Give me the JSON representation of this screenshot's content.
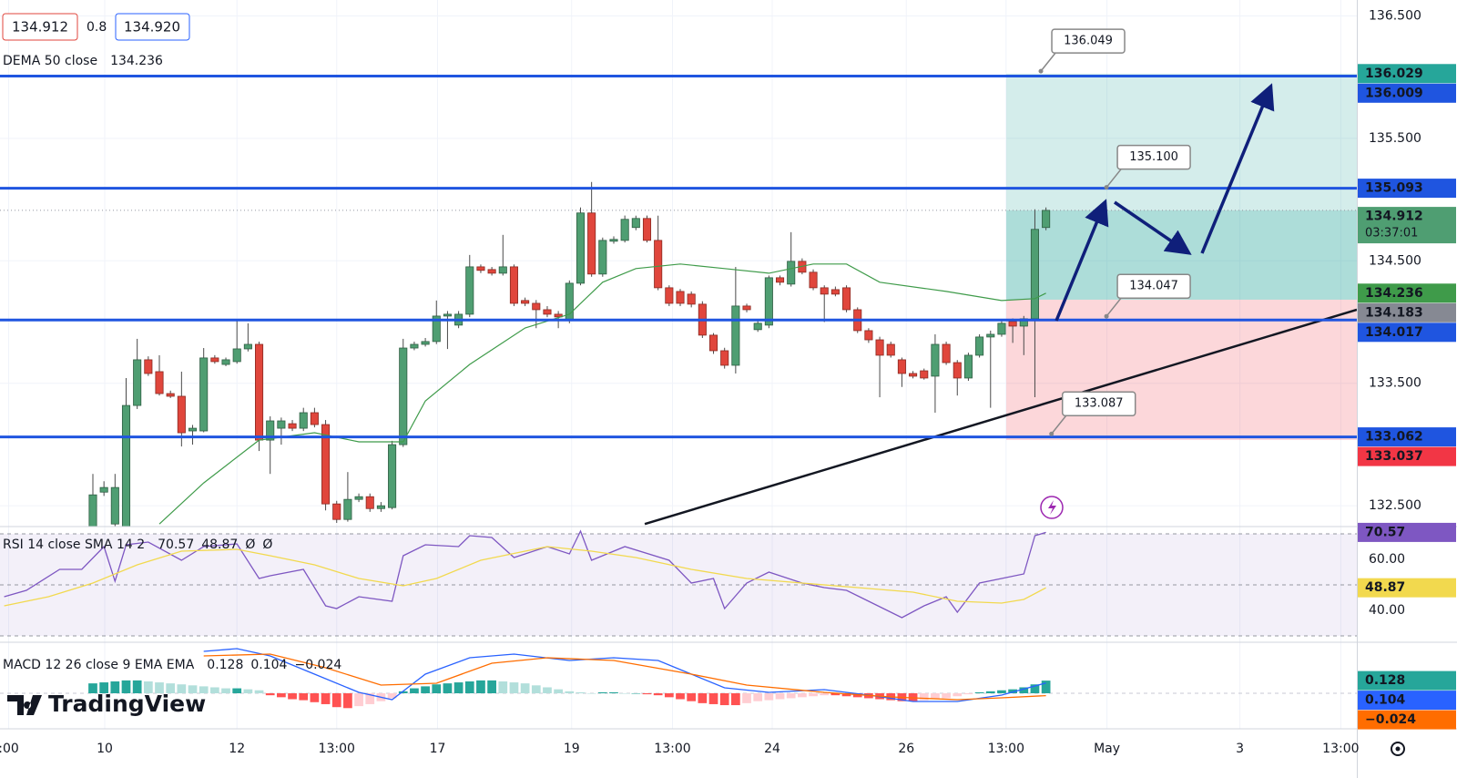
{
  "header": {
    "spread": 0.8,
    "ask": {
      "value": 134.92,
      "label": "134.920"
    },
    "logo": "TradingView"
  },
  "chart_data": [
    {
      "type": "candlestick",
      "xlim": [
        -8.38,
        114.05
      ],
      "xticks": [
        {
          "value": -7.6,
          "label": ":00"
        },
        {
          "value": 1.07,
          "label": "10"
        },
        {
          "value": 13,
          "label": "12"
        },
        {
          "value": 22,
          "label": "13:00"
        },
        {
          "value": 31.1,
          "label": "17"
        },
        {
          "value": 43.2,
          "label": "19"
        },
        {
          "value": 52.3,
          "label": "13:00"
        },
        {
          "value": 61.3,
          "label": "24"
        },
        {
          "value": 73.4,
          "label": "26"
        },
        {
          "value": 82.4,
          "label": "13:00"
        },
        {
          "value": 91.5,
          "label": "May"
        },
        {
          "value": 103.5,
          "label": "3"
        },
        {
          "value": 112.6,
          "label": "13:00"
        }
      ],
      "ylim": [
        132.33,
        136.63
      ],
      "yticks": [
        {
          "value": 132.5,
          "label": "132.500"
        },
        {
          "value": 133.5,
          "label": "133.500"
        },
        {
          "value": 134.5,
          "label": "134.500"
        },
        {
          "value": 135.5,
          "label": "135.500"
        },
        {
          "value": 136.5,
          "label": "136.500"
        }
      ],
      "grid": true,
      "up_color": "#4f9e72",
      "down_color": "#e0463c",
      "open": [
        132.314,
        132.611,
        132.351,
        132.314,
        133.319,
        133.692,
        133.595,
        133.416,
        133.394,
        133.111,
        133.111,
        133.707,
        133.654,
        133.677,
        133.781,
        133.818,
        133.036,
        133.133,
        133.17,
        133.133,
        133.26,
        133.163,
        132.515,
        132.388,
        132.552,
        132.574,
        132.477,
        132.485,
        132.999,
        133.788,
        133.818,
        133.841,
        134.049,
        133.975,
        134.064,
        134.451,
        134.429,
        134.399,
        134.451,
        134.176,
        134.153,
        134.101,
        134.064,
        134.012,
        134.317,
        134.891,
        134.392,
        134.66,
        134.667,
        134.772,
        134.846,
        134.667,
        134.28,
        134.25,
        134.228,
        134.146,
        133.893,
        133.766,
        133.647,
        134.131,
        133.938,
        133.975,
        134.362,
        134.31,
        134.496,
        134.407,
        134.28,
        134.265,
        134.28,
        134.101,
        133.93,
        133.855,
        133.818,
        133.692,
        133.58,
        133.602,
        133.558,
        133.818,
        133.669,
        133.543,
        133.729,
        133.878,
        133.9,
        134.005,
        133.967,
        134.027,
        134.772
      ],
      "high": [
        132.76,
        132.7,
        132.76,
        133.543,
        133.863,
        133.72,
        133.729,
        133.44,
        133.595,
        133.16,
        133.788,
        133.73,
        133.71,
        134.012,
        133.99,
        133.84,
        133.23,
        133.22,
        133.2,
        133.3,
        133.3,
        133.2,
        132.54,
        132.775,
        132.6,
        132.6,
        132.53,
        133.03,
        133.863,
        133.84,
        133.87,
        134.176,
        134.09,
        134.09,
        134.548,
        134.47,
        134.45,
        134.712,
        134.47,
        134.2,
        134.18,
        134.13,
        134.09,
        134.34,
        134.936,
        135.144,
        134.69,
        134.7,
        134.87,
        134.869,
        134.87,
        134.869,
        134.3,
        134.27,
        134.25,
        134.17,
        133.91,
        133.79,
        134.45,
        134.15,
        134.01,
        134.38,
        134.38,
        134.734,
        134.52,
        134.43,
        134.3,
        134.29,
        134.3,
        134.12,
        133.95,
        133.88,
        133.84,
        133.71,
        133.6,
        133.62,
        133.9,
        133.84,
        133.69,
        133.75,
        133.9,
        133.93,
        134.01,
        134.03,
        134.05,
        134.921,
        134.936
      ],
      "low": [
        132.3,
        132.58,
        132.33,
        132.3,
        133.29,
        133.56,
        133.4,
        133.38,
        132.984,
        132.999,
        133.1,
        133.66,
        133.64,
        133.66,
        133.76,
        132.947,
        132.76,
        132.999,
        133.11,
        133.11,
        133.14,
        132.462,
        132.36,
        132.37,
        132.53,
        132.45,
        132.45,
        132.47,
        132.98,
        133.77,
        133.8,
        133.82,
        133.78,
        133.95,
        134.04,
        134.4,
        134.38,
        134.38,
        134.13,
        134.13,
        133.95,
        134.04,
        133.95,
        133.99,
        134.3,
        134.37,
        134.37,
        134.64,
        134.65,
        134.75,
        134.65,
        134.26,
        134.13,
        134.13,
        134.12,
        133.87,
        133.74,
        133.62,
        133.58,
        134.08,
        133.92,
        133.95,
        134.3,
        134.29,
        134.39,
        134.26,
        134.0,
        134.21,
        134.08,
        133.91,
        133.83,
        133.386,
        133.71,
        133.47,
        133.54,
        133.53,
        133.26,
        133.65,
        133.4,
        133.52,
        133.71,
        133.3,
        133.88,
        133.83,
        133.73,
        133.386,
        134.75
      ],
      "close": [
        132.589,
        132.649,
        132.649,
        133.319,
        133.692,
        133.58,
        133.416,
        133.394,
        133.096,
        133.133,
        133.707,
        133.677,
        133.692,
        133.781,
        133.818,
        133.036,
        133.193,
        133.193,
        133.133,
        133.26,
        133.163,
        132.515,
        132.388,
        132.552,
        132.574,
        132.477,
        132.5,
        132.999,
        133.788,
        133.818,
        133.841,
        134.049,
        134.064,
        134.064,
        134.451,
        134.422,
        134.399,
        134.451,
        134.153,
        134.153,
        134.101,
        134.064,
        134.042,
        134.317,
        134.891,
        134.392,
        134.667,
        134.675,
        134.839,
        134.846,
        134.667,
        134.28,
        134.153,
        134.153,
        134.146,
        133.893,
        133.766,
        133.647,
        134.131,
        134.101,
        133.99,
        134.362,
        134.325,
        134.496,
        134.407,
        134.28,
        134.228,
        134.228,
        134.101,
        133.93,
        133.855,
        133.729,
        133.729,
        133.58,
        133.558,
        133.543,
        133.818,
        133.669,
        133.543,
        133.729,
        133.878,
        133.9,
        133.99,
        133.967,
        134.027,
        134.757,
        134.912
      ],
      "countdown": "03:37:01",
      "series": [
        {
          "name": "DEMA 50 close",
          "color": "#3f9b4a",
          "x": [
            6,
            10,
            15,
            20,
            24,
            28,
            30,
            34,
            39,
            43,
            46,
            49,
            53,
            57,
            61,
            65,
            68,
            71,
            77,
            82,
            85,
            86
          ],
          "values": [
            132.351,
            132.686,
            133.036,
            133.096,
            133.022,
            133.022,
            133.356,
            133.654,
            133.952,
            134.064,
            134.325,
            134.437,
            134.474,
            134.437,
            134.399,
            134.474,
            134.474,
            134.325,
            134.25,
            134.176,
            134.191,
            134.236
          ]
        }
      ],
      "levels": [
        136.009,
        135.093,
        134.017,
        133.062
      ],
      "level_color": "#1f55e0",
      "position": {
        "x_start": 82.42,
        "target": 136.029,
        "entry": 134.183,
        "stop": 133.037,
        "profit_color": "#26a69a",
        "loss_color": "#f23645",
        "entry_color": "#868993"
      },
      "trendline": {
        "x": [
          49.8,
          114.05
        ],
        "y": [
          132.351,
          134.101
        ]
      },
      "callouts": [
        136.049,
        {
          "value": 135.1,
          "label": "135.100"
        },
        134.047,
        133.087
      ],
      "callout_x": [
        85.54,
        91.46,
        91.46,
        86.5
      ]
    },
    {
      "type": "line",
      "title": "RSI 14 close SMA 14 2",
      "ylim": [
        29.29,
        72.86
      ],
      "yticks": [
        {
          "value": 40,
          "label": "40.00"
        },
        {
          "value": 60,
          "label": "60.00"
        }
      ],
      "band": [
        30,
        70
      ],
      "midline": 50,
      "band_color": "#7e57c2",
      "legend_extra": [
        "Ø",
        "Ø"
      ],
      "series": [
        {
          "color": "#7e57c2",
          "x": [
            -8,
            -6,
            -3,
            -1,
            1,
            2,
            3,
            5,
            8,
            10,
            13,
            15,
            16,
            19,
            21,
            22,
            24,
            27,
            28,
            30,
            33,
            34,
            36,
            38,
            41,
            43,
            44,
            45,
            48,
            52,
            54,
            56,
            57,
            59,
            61,
            64,
            66,
            68,
            70,
            73,
            75,
            77,
            78,
            80,
            82,
            84,
            85,
            86
          ],
          "values": [
            45.36,
            47.86,
            56.07,
            56.07,
            65,
            51.43,
            65.71,
            66.79,
            59.64,
            65,
            66.07,
            52.5,
            53.57,
            56.07,
            41.79,
            40.71,
            45.36,
            43.57,
            61.43,
            65.71,
            65,
            69.29,
            68.57,
            60.71,
            65,
            62.14,
            71.07,
            59.64,
            65,
            59.64,
            50.71,
            52.5,
            40.71,
            50.71,
            55,
            50.71,
            48.93,
            47.86,
            43.57,
            37.14,
            41.79,
            45.36,
            39.29,
            50.71,
            52.5,
            54.29,
            69.29,
            70.57
          ]
        },
        {
          "color": "#f2d94e",
          "x": [
            -8,
            -4,
            0,
            4,
            8,
            13,
            16,
            20,
            24,
            28,
            31,
            35,
            41,
            45,
            49,
            54,
            59,
            64,
            69,
            74,
            78,
            82,
            84,
            86
          ],
          "values": [
            41.79,
            45.36,
            50.71,
            57.86,
            63.21,
            63.93,
            61.43,
            57.86,
            52.5,
            49.64,
            52.5,
            59.64,
            65,
            63.21,
            60.71,
            56.07,
            52.5,
            50.71,
            48.93,
            47.14,
            43.57,
            42.86,
            44.29,
            48.87
          ]
        }
      ]
    },
    {
      "type": "macd",
      "title": "MACD 12 26 close 9 EMA EMA",
      "ylim": [
        -0.359,
        0.451
      ],
      "histogram": [
        0.1,
        0.11,
        0.12,
        0.13,
        0.13,
        0.12,
        0.11,
        0.1,
        0.09,
        0.08,
        0.07,
        0.06,
        0.05,
        0.05,
        0.04,
        0.03,
        -0.02,
        -0.04,
        -0.06,
        -0.07,
        -0.09,
        -0.11,
        -0.14,
        -0.15,
        -0.13,
        -0.11,
        -0.08,
        -0.05,
        0.02,
        0.05,
        0.07,
        0.09,
        0.1,
        0.11,
        0.12,
        0.13,
        0.13,
        0.12,
        0.11,
        0.1,
        0.08,
        0.06,
        0.04,
        0.02,
        0.01,
        0.0,
        0.01,
        0.01,
        0.0,
        0.0,
        -0.01,
        -0.02,
        -0.04,
        -0.06,
        -0.08,
        -0.1,
        -0.11,
        -0.12,
        -0.12,
        -0.1,
        -0.08,
        -0.07,
        -0.06,
        -0.05,
        -0.04,
        -0.03,
        -0.02,
        -0.02,
        -0.03,
        -0.04,
        -0.05,
        -0.06,
        -0.07,
        -0.08,
        -0.08,
        -0.07,
        -0.06,
        -0.05,
        -0.03,
        -0.01,
        0.01,
        0.02,
        0.03,
        0.04,
        0.06,
        0.09,
        0.128
      ],
      "histogram_colors": [
        "#26a69a",
        "#b2dfdb",
        "#ff5252",
        "#ffcdd2"
      ],
      "series": [
        {
          "color": "#2962ff",
          "x": [
            10,
            13,
            16,
            20,
            24,
            27,
            30,
            34,
            38,
            43,
            47,
            51,
            54,
            57,
            61,
            66,
            70,
            74,
            78,
            82,
            86
          ],
          "values": [
            0.423,
            0.451,
            0.377,
            0.193,
            0.009,
            -0.064,
            0.193,
            0.359,
            0.396,
            0.331,
            0.359,
            0.331,
            0.193,
            0.055,
            0.009,
            0.037,
            -0.018,
            -0.083,
            -0.083,
            -0.018,
            0.104
          ]
        },
        {
          "color": "#ff6d00",
          "x": [
            10,
            16,
            21,
            26,
            31,
            36,
            41,
            47,
            54,
            59,
            66,
            72,
            78,
            82,
            86
          ],
          "values": [
            0.377,
            0.396,
            0.258,
            0.083,
            0.101,
            0.304,
            0.359,
            0.331,
            0.193,
            0.083,
            0.009,
            -0.037,
            -0.064,
            -0.046,
            -0.024
          ],
          "value_labels": [
            null,
            null,
            null,
            null,
            null,
            null,
            null,
            null,
            null,
            null,
            null,
            null,
            null,
            null,
            "−0.024"
          ]
        }
      ]
    }
  ]
}
